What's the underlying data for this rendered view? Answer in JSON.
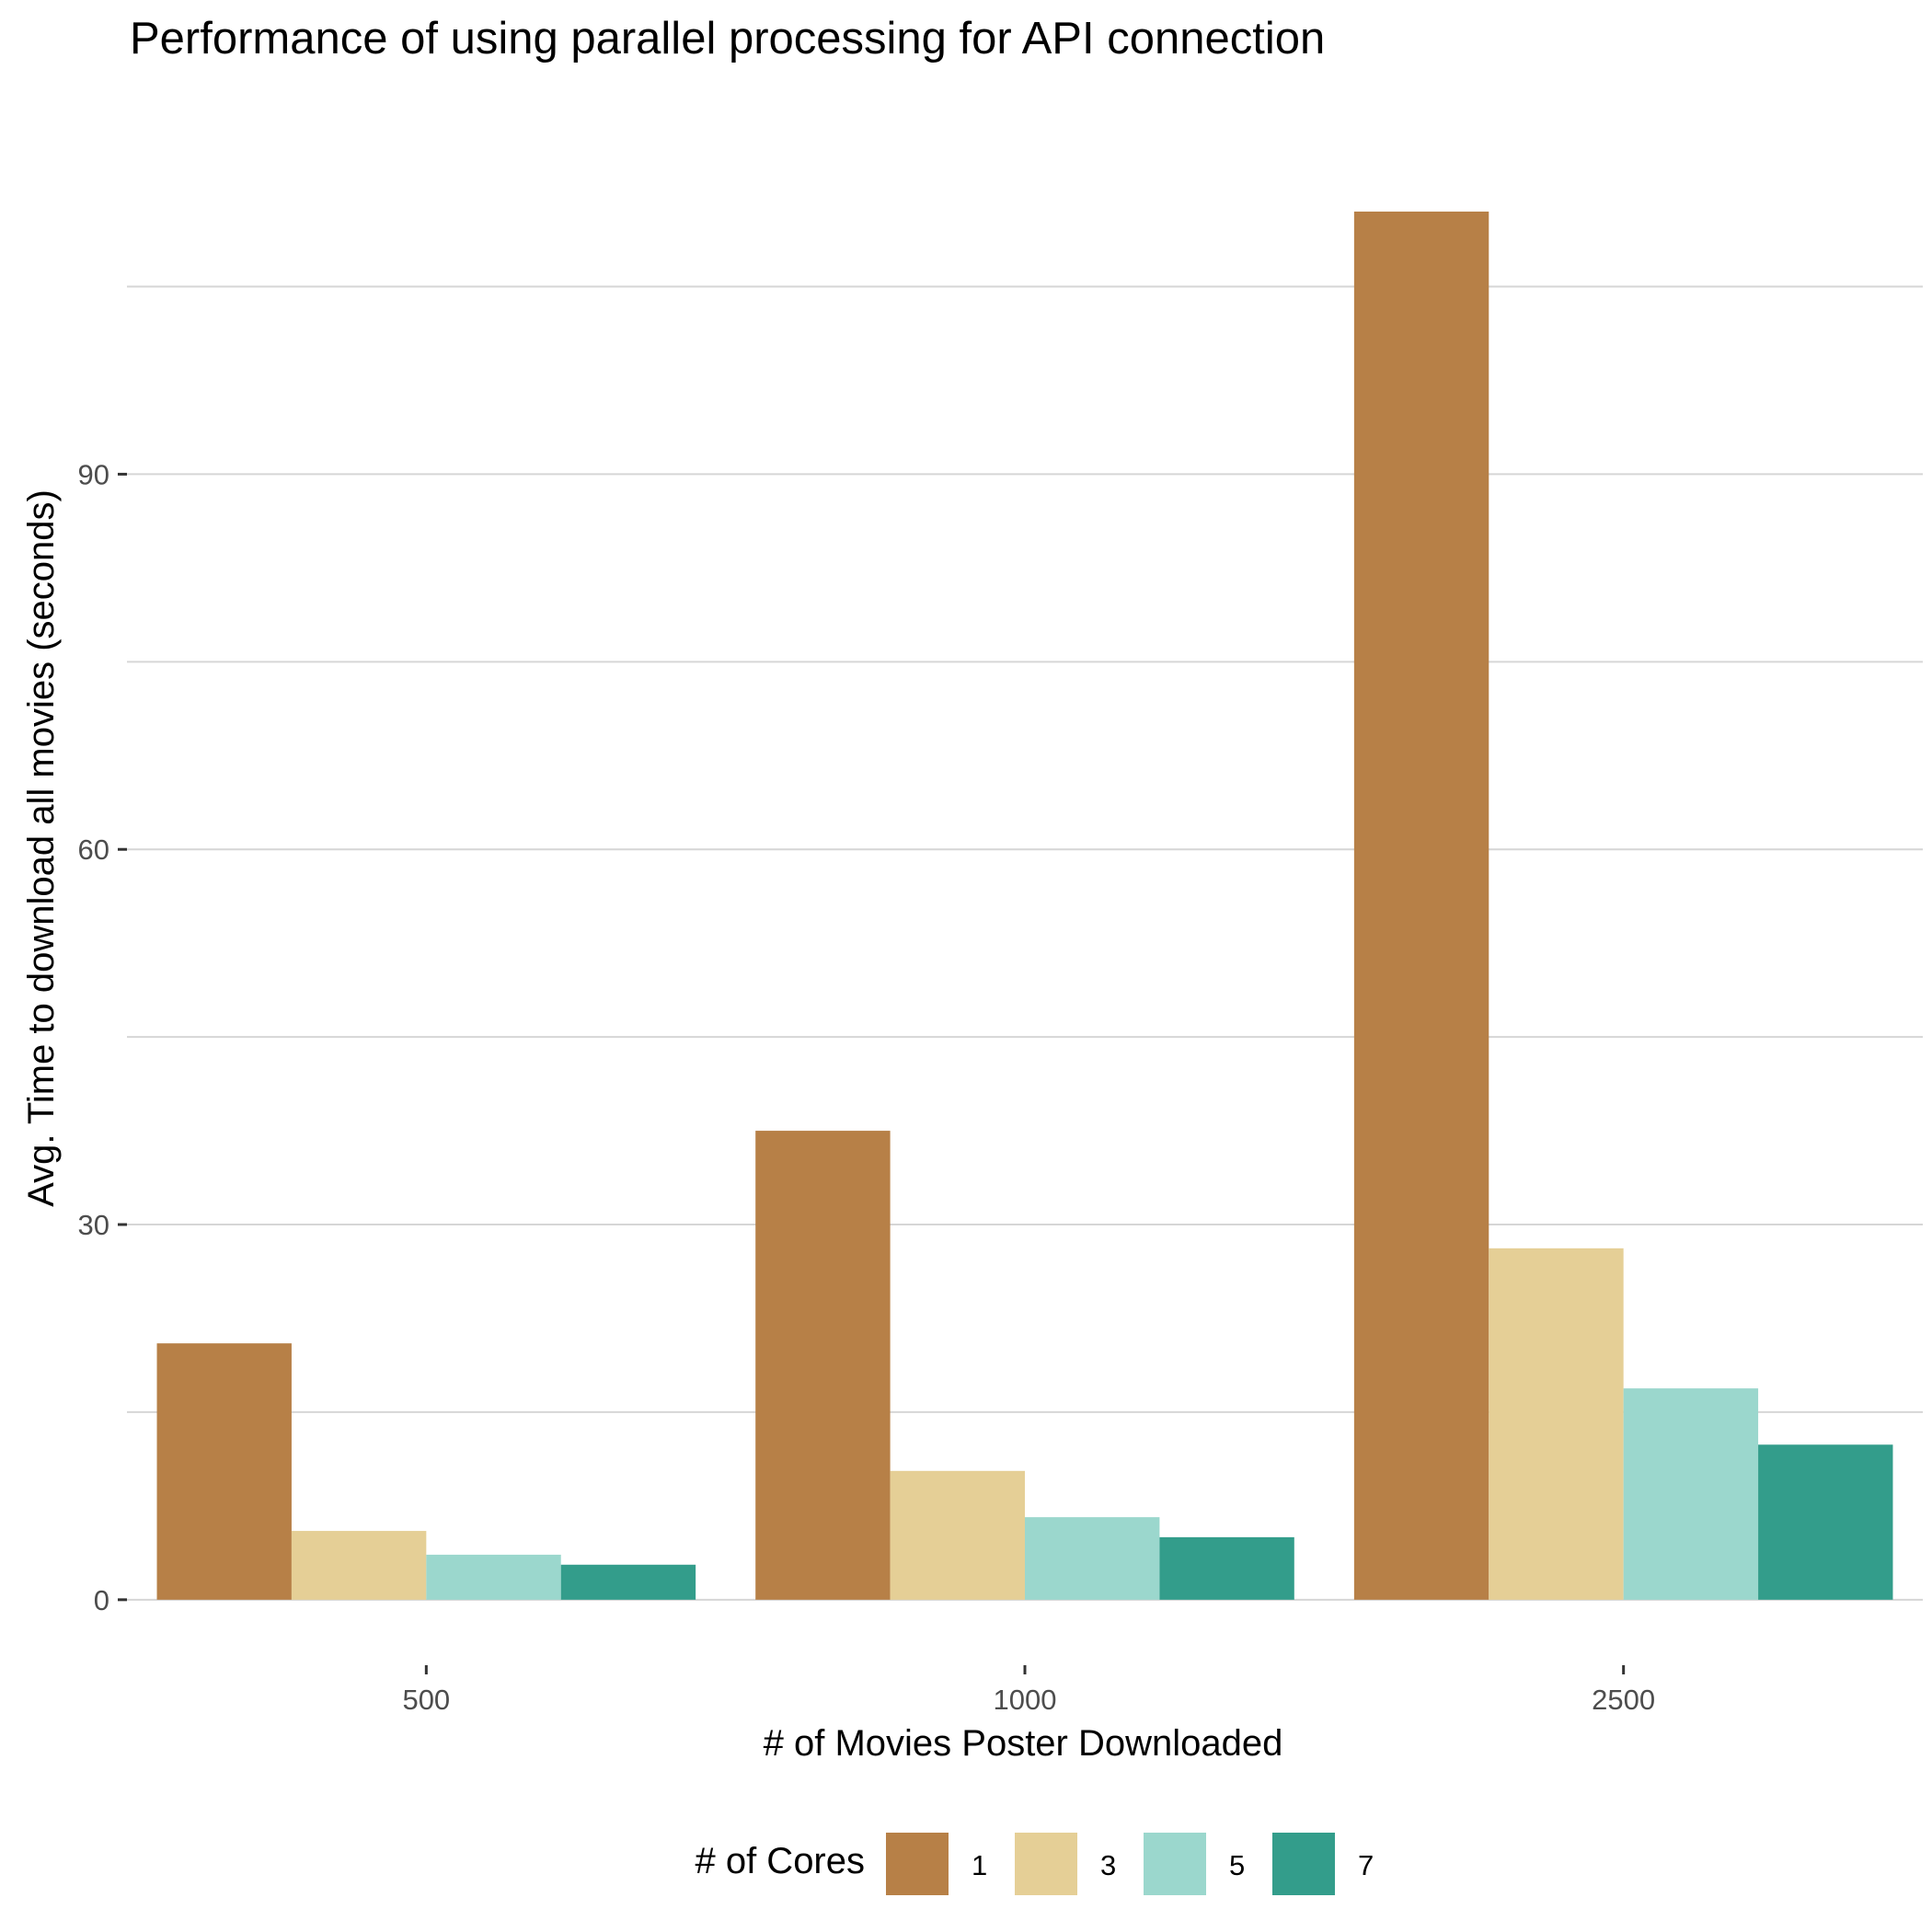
{
  "chart_data": {
    "type": "bar",
    "title": "Performance of using parallel processing for API connection",
    "xlabel": "# of Movies Poster Downloaded",
    "ylabel": "Avg. Time to download all movies (seconds)",
    "categories": [
      "500",
      "1000",
      "2500"
    ],
    "series": [
      {
        "name": "1",
        "color": "#b78047",
        "values": [
          20.5,
          37.5,
          111
        ]
      },
      {
        "name": "3",
        "color": "#e5cf96",
        "values": [
          5.5,
          10.3,
          28.1
        ]
      },
      {
        "name": "5",
        "color": "#9bd7cd",
        "values": [
          3.6,
          6.6,
          16.9
        ]
      },
      {
        "name": "7",
        "color": "#339d8b",
        "values": [
          2.8,
          5.0,
          12.4
        ]
      }
    ],
    "yticks": [
      0,
      30,
      60,
      90
    ],
    "ylim": [
      -4.5,
      116
    ],
    "grid": true,
    "legend": {
      "title": "# of Cores",
      "position": "bottom"
    }
  }
}
